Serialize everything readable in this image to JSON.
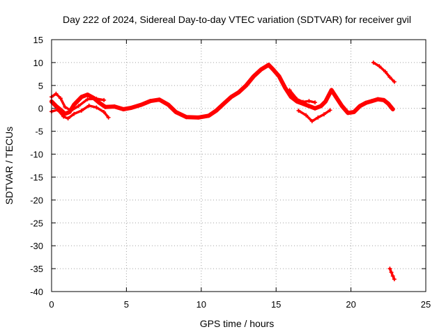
{
  "chart_data": {
    "type": "scatter",
    "title": "Day 222 of 2024, Sidereal Day-to-day VTEC variation (SDTVAR) for receiver gvil",
    "xlabel": "GPS time / hours",
    "ylabel": "SDTVAR / TECUs",
    "xlim": [
      0,
      25
    ],
    "ylim": [
      -40,
      15
    ],
    "xticks": [
      0,
      5,
      10,
      15,
      20,
      25
    ],
    "yticks": [
      15,
      10,
      5,
      0,
      -5,
      -10,
      -15,
      -20,
      -25,
      -30,
      -35,
      -40
    ],
    "grid": true,
    "color": "#ff0000",
    "series": [
      {
        "name": "track-main",
        "values": [
          [
            0,
            1.5
          ],
          [
            0.3,
            0.5
          ],
          [
            0.6,
            -0.3
          ],
          [
            0.9,
            -1.2
          ],
          [
            1.2,
            -0.8
          ],
          [
            1.5,
            0.8
          ],
          [
            2.0,
            2.5
          ],
          [
            2.4,
            3.0
          ],
          [
            2.8,
            2.3
          ],
          [
            3.2,
            1.2
          ],
          [
            3.6,
            0.3
          ],
          [
            4.2,
            0.4
          ],
          [
            4.8,
            -0.2
          ],
          [
            5.3,
            0.1
          ],
          [
            6.0,
            0.8
          ],
          [
            6.6,
            1.6
          ],
          [
            7.2,
            1.9
          ],
          [
            7.8,
            0.8
          ],
          [
            8.3,
            -0.8
          ],
          [
            9.0,
            -1.9
          ],
          [
            9.8,
            -2.0
          ],
          [
            10.5,
            -1.6
          ],
          [
            11.0,
            -0.5
          ],
          [
            11.5,
            1.0
          ],
          [
            12.0,
            2.5
          ],
          [
            12.5,
            3.5
          ],
          [
            13.0,
            5.0
          ],
          [
            13.5,
            7.0
          ],
          [
            14.0,
            8.5
          ],
          [
            14.5,
            9.5
          ],
          [
            14.8,
            8.5
          ],
          [
            15.2,
            7.0
          ],
          [
            15.6,
            4.5
          ],
          [
            16.0,
            2.5
          ],
          [
            16.4,
            1.5
          ],
          [
            16.8,
            1.0
          ],
          [
            17.2,
            0.5
          ],
          [
            17.6,
            0.0
          ],
          [
            18.0,
            0.5
          ],
          [
            18.3,
            1.5
          ],
          [
            18.7,
            4.0
          ],
          [
            19.0,
            2.5
          ],
          [
            19.4,
            0.5
          ],
          [
            19.8,
            -1.0
          ],
          [
            20.2,
            -0.8
          ],
          [
            20.6,
            0.5
          ],
          [
            21.0,
            1.2
          ],
          [
            21.4,
            1.6
          ],
          [
            21.8,
            2.0
          ],
          [
            22.2,
            1.8
          ],
          [
            22.5,
            1.0
          ],
          [
            22.8,
            -0.2
          ]
        ]
      },
      {
        "name": "track-upper-a",
        "values": [
          [
            0.0,
            2.5
          ],
          [
            0.3,
            3.2
          ],
          [
            0.6,
            2.2
          ],
          [
            0.9,
            0.3
          ],
          [
            1.3,
            -0.5
          ],
          [
            1.8,
            0.5
          ],
          [
            2.4,
            2.0
          ],
          [
            3.0,
            2.1
          ],
          [
            3.5,
            1.8
          ]
        ]
      },
      {
        "name": "track-lower-a",
        "values": [
          [
            0.0,
            -0.7
          ],
          [
            0.4,
            -0.3
          ],
          [
            0.8,
            -1.8
          ],
          [
            1.1,
            -2.2
          ],
          [
            1.5,
            -1.2
          ],
          [
            2.0,
            -0.5
          ],
          [
            2.5,
            0.6
          ],
          [
            3.0,
            0.2
          ],
          [
            3.5,
            -0.8
          ],
          [
            3.8,
            -2.0
          ]
        ]
      },
      {
        "name": "track-lower-b",
        "values": [
          [
            16.5,
            -0.5
          ],
          [
            17.0,
            -1.5
          ],
          [
            17.4,
            -2.8
          ],
          [
            17.8,
            -2.0
          ],
          [
            18.2,
            -1.3
          ],
          [
            18.6,
            -0.4
          ]
        ]
      },
      {
        "name": "track-upper-b",
        "values": [
          [
            15.9,
            4.0
          ],
          [
            16.4,
            2.0
          ],
          [
            16.8,
            1.4
          ],
          [
            17.2,
            1.6
          ],
          [
            17.6,
            1.3
          ]
        ]
      },
      {
        "name": "track-upper-c",
        "values": [
          [
            21.5,
            10.0
          ],
          [
            21.9,
            9.2
          ],
          [
            22.3,
            8.0
          ],
          [
            22.6,
            6.8
          ],
          [
            22.9,
            5.8
          ]
        ]
      },
      {
        "name": "track-outlier",
        "values": [
          [
            22.6,
            -35.0
          ],
          [
            22.7,
            -35.8
          ],
          [
            22.8,
            -36.6
          ],
          [
            22.9,
            -37.3
          ]
        ]
      }
    ]
  }
}
